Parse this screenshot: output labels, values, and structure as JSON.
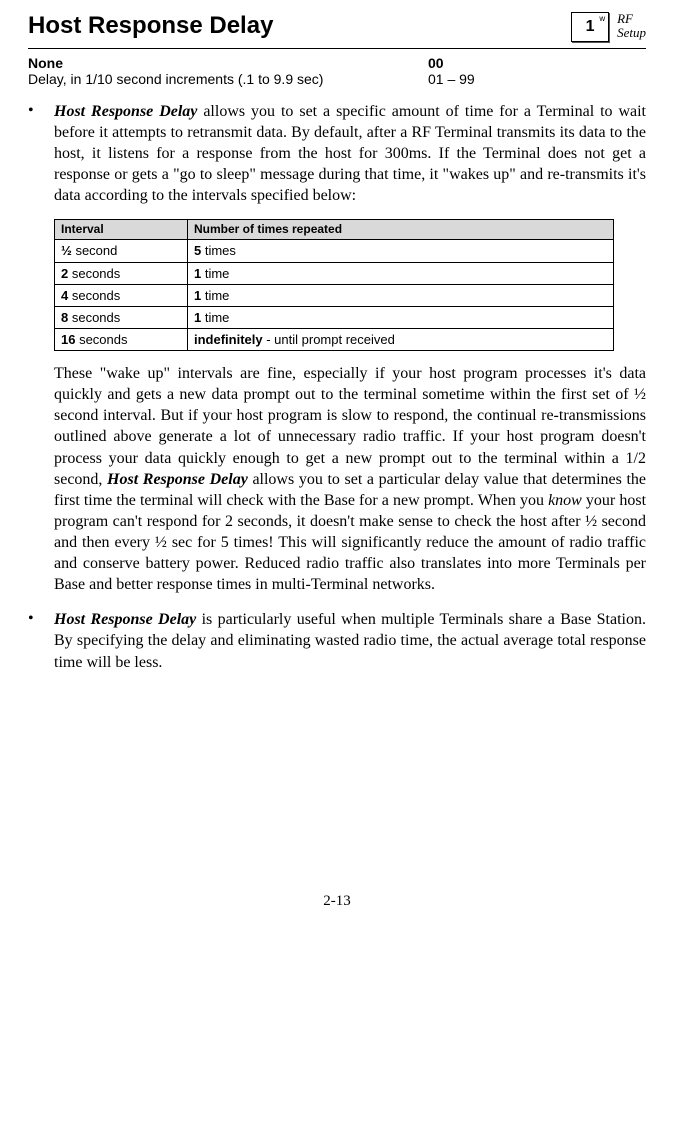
{
  "header": {
    "title": "Host Response Delay",
    "icon": {
      "main": "1",
      "sup": "w"
    },
    "icon_label_line1": "RF",
    "icon_label_line2": "Setup"
  },
  "params": {
    "row1": {
      "label": "None",
      "value": "00"
    },
    "row2": {
      "label": "Delay, in 1/10 second increments (.1 to 9.9 sec)",
      "value": "01 – 99"
    }
  },
  "para1": {
    "lead": "Host Response Delay",
    "rest": " allows you to set a specific amount of time for a Terminal to wait before it attempts to retransmit data.  By default, after a RF Terminal transmits its data to the host, it listens for a response from the host for 300ms. If the Terminal does not get a response or gets a \"go to sleep\" message during that time, it \"wakes up\" and re-transmits it's data according to the intervals specified below:"
  },
  "table": {
    "headers": {
      "c1": "Interval",
      "c2": "Number of times repeated"
    },
    "rows": [
      {
        "c1b": "½",
        "c1r": " second",
        "c2b": "5",
        "c2r": " times"
      },
      {
        "c1b": "2",
        "c1r": " seconds",
        "c2b": "1",
        "c2r": " time"
      },
      {
        "c1b": "4",
        "c1r": " seconds",
        "c2b": "1",
        "c2r": " time"
      },
      {
        "c1b": "8",
        "c1r": " seconds",
        "c2b": "1",
        "c2r": " time"
      },
      {
        "c1b": "16",
        "c1r": " seconds",
        "c2b": "indefinitely",
        "c2r": " - until prompt received"
      }
    ]
  },
  "para2": {
    "pre": "These \"wake up\" intervals are fine, especially if your host program processes it's data quickly and gets a new data prompt out to the terminal sometime within the first set of ½ second interval. But if your host program is slow to respond, the continual re-transmissions outlined above generate a lot of unnecessary radio traffic. If your host program doesn't process your data quickly enough to get a new prompt out to the terminal within a 1/2 second, ",
    "lead": "Host Response Delay",
    "mid": " allows you to set a particular delay value that determines the first time the terminal will check with the Base for a new prompt. When you ",
    "know": "know",
    "post": " your host program can't respond for 2 seconds, it doesn't make sense to check the host after ½ second and then every ½ sec for 5 times! This will significantly reduce the amount of radio traffic and conserve battery power.  Reduced radio traffic also translates into more Terminals per Base and better response times in multi-Terminal networks."
  },
  "para3": {
    "lead": "Host Response Delay",
    "rest": " is particularly useful when multiple Terminals share a Base Station.  By specifying the delay and eliminating wasted radio time, the actual average total response time will be less."
  },
  "pagenum": "2-13"
}
